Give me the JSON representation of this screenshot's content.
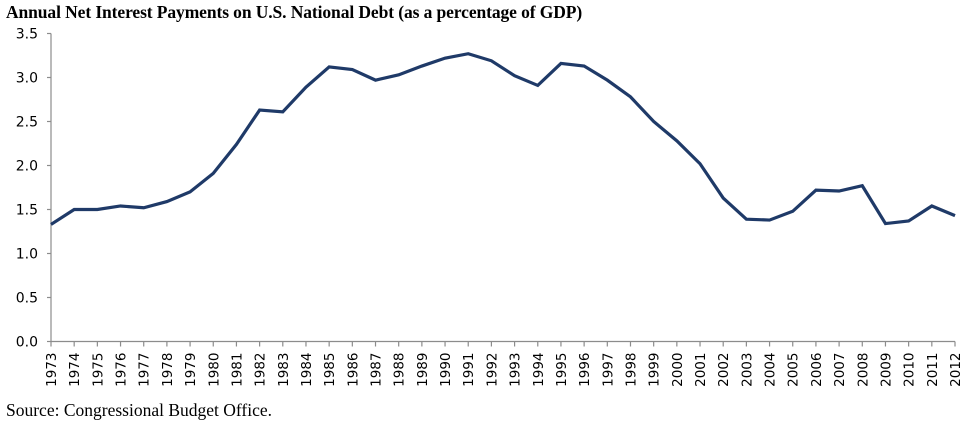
{
  "chart_data": {
    "type": "line",
    "title": "Annual Net Interest Payments on U.S. National Debt (as a percentage of GDP)",
    "xlabel": "",
    "ylabel": "",
    "source": "Source: Congressional Budget Office.",
    "ylim": [
      0,
      3.5
    ],
    "yticks": [
      "0.0",
      "0.5",
      "1.0",
      "1.5",
      "2.0",
      "2.5",
      "3.0",
      "3.5"
    ],
    "ytick_values": [
      0,
      0.5,
      1.0,
      1.5,
      2.0,
      2.5,
      3.0,
      3.5
    ],
    "grid": false,
    "legend": "none",
    "line_color": "#1f3a68",
    "axis_color": "#8c8c8c",
    "categories": [
      "1973",
      "1974",
      "1975",
      "1976",
      "1977",
      "1978",
      "1979",
      "1980",
      "1981",
      "1982",
      "1983",
      "1984",
      "1985",
      "1986",
      "1987",
      "1988",
      "1989",
      "1990",
      "1991",
      "1992",
      "1993",
      "1994",
      "1995",
      "1996",
      "1997",
      "1998",
      "1999",
      "2000",
      "2001",
      "2002",
      "2003",
      "2004",
      "2005",
      "2006",
      "2007",
      "2008",
      "2009",
      "2010",
      "2011",
      "2012"
    ],
    "series": [
      {
        "name": "Net interest (% of GDP)",
        "values": [
          1.33,
          1.5,
          1.5,
          1.54,
          1.52,
          1.59,
          1.7,
          1.91,
          2.24,
          2.63,
          2.61,
          2.89,
          3.12,
          3.09,
          2.97,
          3.03,
          3.13,
          3.22,
          3.27,
          3.19,
          3.02,
          2.91,
          3.16,
          3.13,
          2.97,
          2.78,
          2.5,
          2.28,
          2.02,
          1.63,
          1.39,
          1.38,
          1.48,
          1.72,
          1.71,
          1.77,
          1.34,
          1.37,
          1.54,
          1.43
        ]
      }
    ]
  }
}
